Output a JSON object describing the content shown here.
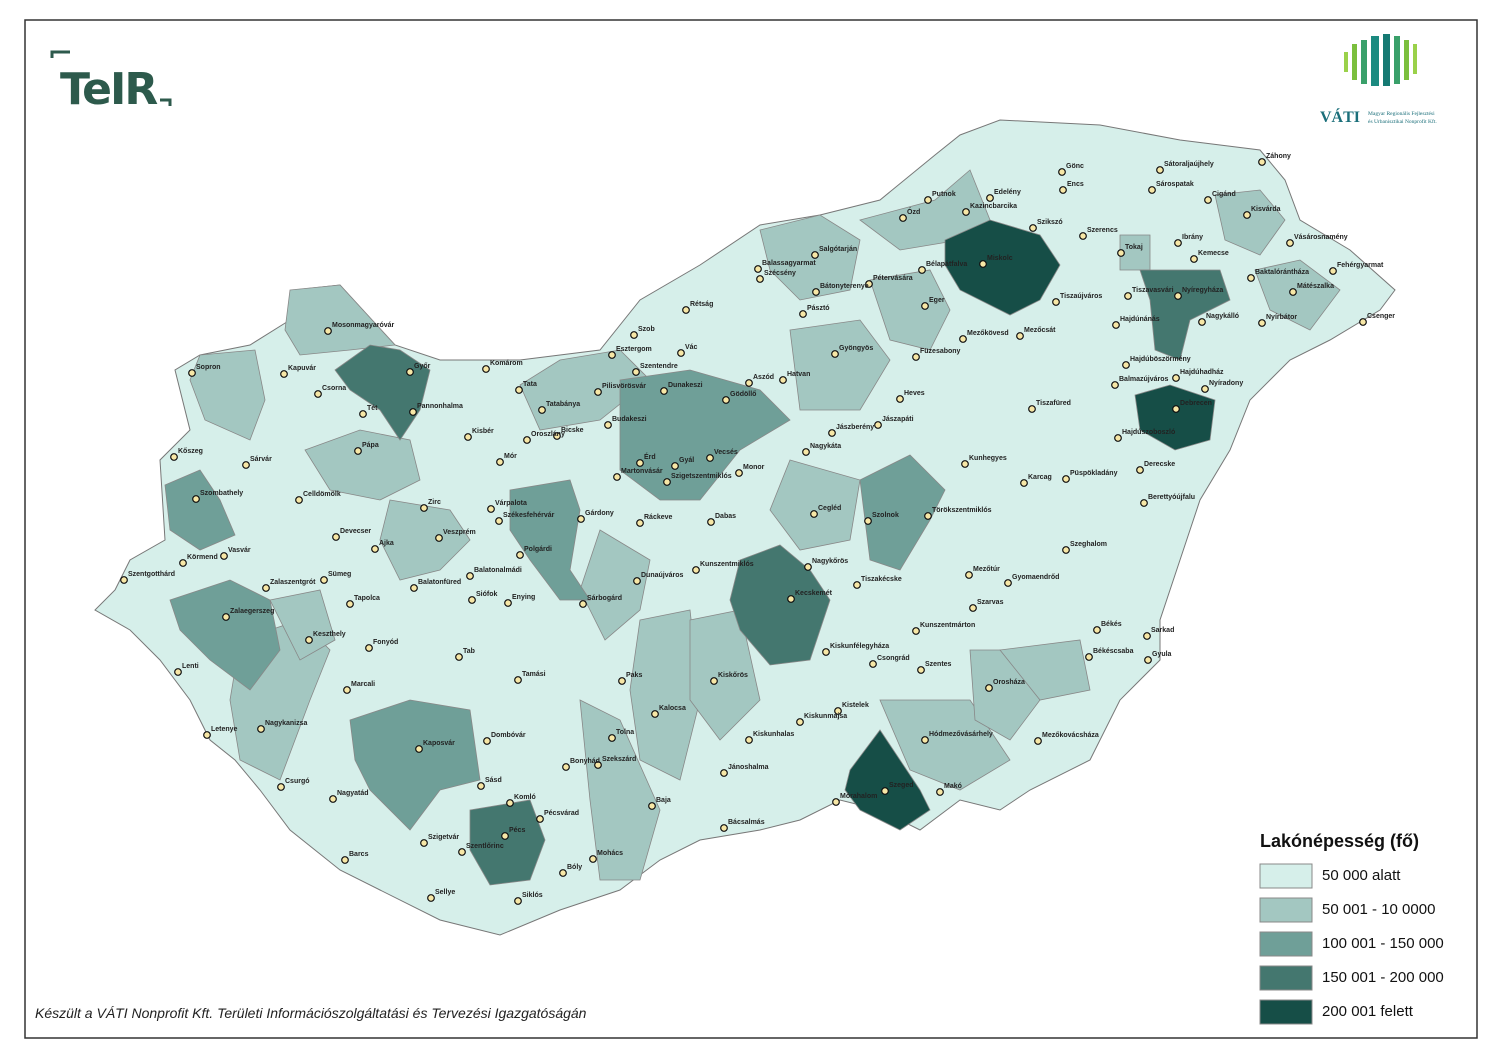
{
  "logo": {
    "teir": "TeIR",
    "vati": "VÁTI",
    "vati_line1": "Magyar Regionális Fejlesztési",
    "vati_line2": "és Urbanisztikai Nonprofit Kft."
  },
  "legend": {
    "title": "Lakónépesség (fő)",
    "items": [
      {
        "label": "50 000 alatt",
        "color": "#d6efea"
      },
      {
        "label": "50 001 - 10 0000",
        "color": "#a3c7c1"
      },
      {
        "label": "100 001 - 150 000",
        "color": "#6f9f98"
      },
      {
        "label": "150 001 - 200 000",
        "color": "#44776f"
      },
      {
        "label": "200 001 felett",
        "color": "#164e47"
      }
    ]
  },
  "footer": "Készült a VÁTI Nonprofit Kft. Területi Információszolgáltatási és Tervezési Igazgatóságán",
  "cities": [
    "Gönc",
    "Sátoraljaújhely",
    "Záhony",
    "Sárospatak",
    "Edelény",
    "Putnok",
    "Encs",
    "Cigánd",
    "Kazincbarcika",
    "Ózd",
    "Szikszó",
    "Szerencs",
    "Kisvárda",
    "Ibrány",
    "Tokaj",
    "Kemecse",
    "Salgótarján",
    "Miskolc",
    "Vásárosnamény",
    "Balassagyarmat",
    "Szécsény",
    "Bélapátfalva",
    "Baktalórántháza",
    "Fehérgyarmat",
    "Pétervására",
    "Bátonyterenye",
    "Tiszaújváros",
    "Tiszavasvári",
    "Nyíregyháza",
    "Mátészalka",
    "Eger",
    "Rétság",
    "Pásztó",
    "Hajdúnánás",
    "Nagykálló",
    "Nyírbátor",
    "Csenger",
    "Szob",
    "Mezőkövesd",
    "Mezőcsát",
    "Gyöngyös",
    "Esztergom",
    "Vác",
    "Füzesabony",
    "Mosonmagyaróvár",
    "Hajdúböszörmény",
    "Komárom",
    "Sopron",
    "Kapuvár",
    "Győr",
    "Szentendre",
    "Hajdúhadház",
    "Balmazújváros",
    "Nyíradony",
    "Hatvan",
    "Aszód",
    "Pilisvörösvár",
    "Dunakeszi",
    "Csorna",
    "Tata",
    "Pannonhalma",
    "Tét",
    "Tatabánya",
    "Gödöllő",
    "Heves",
    "Debrecen",
    "Tiszafüred",
    "Budakeszi",
    "Bicske",
    "Oroszlány",
    "Kisbér",
    "Jászapáti",
    "Jászberény",
    "Hajdúszoboszló",
    "Kőszeg",
    "Pápa",
    "Mór",
    "Érd",
    "Vecsés",
    "Gyál",
    "Nagykáta",
    "Monor",
    "Kunhegyes",
    "Martonvásár",
    "Szigetszentmiklós",
    "Derecske",
    "Szombathely",
    "Sárvár",
    "Celldömölk",
    "Karcag",
    "Püspökladány",
    "Zirc",
    "Várpalota",
    "Berettyóújfalu",
    "Székesfehérvár",
    "Gárdony",
    "Ráckeve",
    "Dabas",
    "Cegléd",
    "Szolnok",
    "Törökszentmiklós",
    "Devecser",
    "Ajka",
    "Veszprém",
    "Polgárdi",
    "Szeghalom",
    "Körmend",
    "Vasvár",
    "Kunszentmiklós",
    "Nagykőrös",
    "Zalaszentgrót",
    "Sümeg",
    "Balatonalmádi",
    "Dunaújváros",
    "Mezőtúr",
    "Gyomaendrőd",
    "Szentgotthárd",
    "Balatonfüred",
    "Tiszakécske",
    "Siófok",
    "Enying",
    "Sárbogárd",
    "Kecskemét",
    "Tapolca",
    "Zalaegerszeg",
    "Szarvas",
    "Keszthely",
    "Kunszentmárton",
    "Békés",
    "Fonyód",
    "Kiskunfélegyháza",
    "Sarkad",
    "Békéscsaba",
    "Gyula",
    "Tab",
    "Csongrád",
    "Lenti",
    "Szentes",
    "Tamási",
    "Paks",
    "Marcali",
    "Orosháza",
    "Kiskőrös",
    "Kalocsa",
    "Kistelek",
    "Kiskunmajsa",
    "Nagykanizsa",
    "Letenye",
    "Tolna",
    "Dombóvár",
    "Kiskunhalas",
    "Hódmezővásárhely",
    "Mezőkovácsháza",
    "Szekszárd",
    "Bonyhád",
    "Kaposvár",
    "Jánoshalma",
    "Szeged",
    "Csurgó",
    "Sásd",
    "Makó",
    "Nagyatád",
    "Baja",
    "Mórahalom",
    "Komló",
    "Pécsvárad",
    "Bácsalmás",
    "Pécs",
    "Szigetvár",
    "Szentlőrinc",
    "Mohács",
    "Barcs",
    "Bóly",
    "Sellye",
    "Siklós"
  ]
}
